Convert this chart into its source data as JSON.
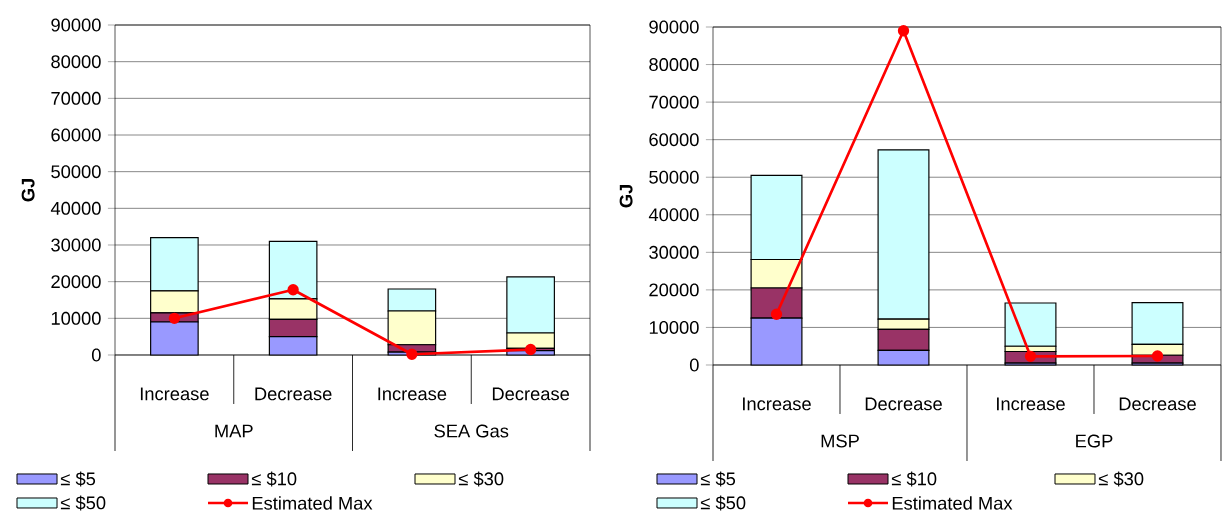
{
  "chart_data": [
    {
      "type": "bar",
      "stacked": true,
      "ylabel": "GJ",
      "categories": [
        "Increase",
        "Decrease",
        "Increase",
        "Decrease"
      ],
      "annotations": [
        "MAP",
        "SEA Gas"
      ],
      "ylim": [
        0,
        90000
      ],
      "yticks": [
        0,
        10000,
        20000,
        30000,
        40000,
        50000,
        60000,
        70000,
        80000,
        90000
      ],
      "grid": "y",
      "legend": "bottom",
      "series": [
        {
          "name": "≤ $5",
          "color": "#9999ff",
          "values": [
            9000,
            5000,
            800,
            1200
          ]
        },
        {
          "name": "≤ $10",
          "color": "#993366",
          "values": [
            2500,
            4700,
            2000,
            600
          ]
        },
        {
          "name": "≤ $30",
          "color": "#ffffcc",
          "values": [
            6000,
            5600,
            9200,
            4200
          ]
        },
        {
          "name": "≤ $50",
          "color": "#ccffff",
          "values": [
            14500,
            15700,
            6000,
            15300
          ]
        },
        {
          "name": "Estimated Max",
          "type": "line",
          "color": "#ff0000",
          "marker": "circle",
          "line_style": "solid",
          "values": [
            10000,
            17800,
            200,
            1500
          ]
        }
      ]
    },
    {
      "type": "bar",
      "stacked": true,
      "ylabel": "GJ",
      "categories": [
        "Increase",
        "Decrease",
        "Increase",
        "Decrease"
      ],
      "annotations": [
        "MSP",
        "EGP"
      ],
      "ylim": [
        0,
        90000
      ],
      "yticks": [
        0,
        10000,
        20000,
        30000,
        40000,
        50000,
        60000,
        70000,
        80000,
        90000
      ],
      "grid": "y",
      "legend": "bottom",
      "series": [
        {
          "name": "≤ $5",
          "color": "#9999ff",
          "values": [
            12500,
            3900,
            500,
            500
          ]
        },
        {
          "name": "≤ $10",
          "color": "#993366",
          "values": [
            8000,
            5600,
            3100,
            2100
          ]
        },
        {
          "name": "≤ $30",
          "color": "#ffffcc",
          "values": [
            7600,
            2700,
            1400,
            2900
          ]
        },
        {
          "name": "≤ $50",
          "color": "#ccffff",
          "values": [
            22400,
            45100,
            11500,
            11100
          ]
        },
        {
          "name": "Estimated Max",
          "type": "line",
          "color": "#ff0000",
          "marker": "circle",
          "line_style": "solid",
          "values": [
            13500,
            89000,
            2300,
            2400
          ]
        }
      ]
    }
  ]
}
